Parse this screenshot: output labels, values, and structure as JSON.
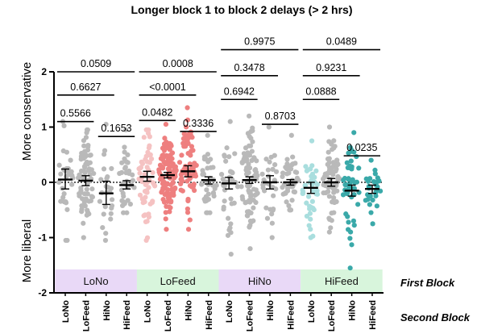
{
  "chart_data": {
    "type": "scatter",
    "title": "Longer block 1 to block 2 delays (> 2 hrs)",
    "ylabel_top": "More conservative",
    "ylabel_bottom": "More liberal",
    "ylim": [
      -2,
      2
    ],
    "yticks": [
      "-2",
      "-1",
      "0",
      "1",
      "2"
    ],
    "reference_line": 0,
    "first_block_label": "First Block",
    "second_block_label": "Second Block",
    "first_blocks": [
      {
        "name": "LoNo",
        "color": "#e9d9f7"
      },
      {
        "name": "LoFeed",
        "color": "#d8f5dc"
      },
      {
        "name": "HiNo",
        "color": "#e9d9f7"
      },
      {
        "name": "HiFeed",
        "color": "#d8f5dc"
      }
    ],
    "second_blocks": [
      "LoNo",
      "LoFeed",
      "HiNo",
      "HiFeed"
    ],
    "series": [
      {
        "first": "LoNo",
        "second": "LoNo",
        "color": "#b9b9b9",
        "mean": 0.05,
        "ci": [
          -0.12,
          0.24
        ],
        "n": 30,
        "min": -1.05,
        "max": 1.1
      },
      {
        "first": "LoNo",
        "second": "LoFeed",
        "color": "#b9b9b9",
        "mean": 0.03,
        "ci": [
          -0.06,
          0.12
        ],
        "n": 70,
        "min": -1.0,
        "max": 0.95
      },
      {
        "first": "LoNo",
        "second": "HiNo",
        "color": "#b9b9b9",
        "mean": -0.2,
        "ci": [
          -0.4,
          0.02
        ],
        "n": 25,
        "min": -1.05,
        "max": 1.05
      },
      {
        "first": "LoNo",
        "second": "HiFeed",
        "color": "#b9b9b9",
        "mean": -0.05,
        "ci": [
          -0.12,
          0.03
        ],
        "n": 35,
        "min": -0.55,
        "max": 0.95
      },
      {
        "first": "LoFeed",
        "second": "LoNo",
        "color": "#f5c2c2",
        "mean": 0.1,
        "ci": [
          0.02,
          0.2
        ],
        "n": 55,
        "min": -1.05,
        "max": 0.95
      },
      {
        "first": "LoFeed",
        "second": "LoFeed",
        "color": "#ee7f7f",
        "mean": 0.13,
        "ci": [
          0.08,
          0.18
        ],
        "n": 110,
        "min": -0.85,
        "max": 1.05
      },
      {
        "first": "LoFeed",
        "second": "HiNo",
        "color": "#ee7f7f",
        "mean": 0.2,
        "ci": [
          0.1,
          0.3
        ],
        "n": 75,
        "min": -0.85,
        "max": 1.35
      },
      {
        "first": "LoFeed",
        "second": "HiFeed",
        "color": "#b9b9b9",
        "mean": 0.04,
        "ci": [
          -0.03,
          0.1
        ],
        "n": 35,
        "min": -0.55,
        "max": 0.85
      },
      {
        "first": "HiNo",
        "second": "LoNo",
        "color": "#b9b9b9",
        "mean": -0.02,
        "ci": [
          -0.12,
          0.09
        ],
        "n": 40,
        "min": -1.3,
        "max": 1.1
      },
      {
        "first": "HiNo",
        "second": "LoFeed",
        "color": "#b9b9b9",
        "mean": 0.04,
        "ci": [
          -0.02,
          0.1
        ],
        "n": 80,
        "min": -1.2,
        "max": 1.2
      },
      {
        "first": "HiNo",
        "second": "HiNo",
        "color": "#b9b9b9",
        "mean": 0.0,
        "ci": [
          -0.12,
          0.12
        ],
        "n": 30,
        "min": -1.0,
        "max": 1.0
      },
      {
        "first": "HiNo",
        "second": "HiFeed",
        "color": "#b9b9b9",
        "mean": 0.0,
        "ci": [
          -0.05,
          0.05
        ],
        "n": 45,
        "min": -0.5,
        "max": 0.85
      },
      {
        "first": "HiFeed",
        "second": "LoNo",
        "color": "#a9dede",
        "mean": -0.1,
        "ci": [
          -0.2,
          0.0
        ],
        "n": 40,
        "min": -1.0,
        "max": 0.75
      },
      {
        "first": "HiFeed",
        "second": "LoFeed",
        "color": "#b9b9b9",
        "mean": 0.0,
        "ci": [
          -0.07,
          0.07
        ],
        "n": 75,
        "min": -0.9,
        "max": 1.0
      },
      {
        "first": "HiFeed",
        "second": "HiNo",
        "color": "#3aa9a9",
        "mean": -0.15,
        "ci": [
          -0.25,
          -0.05
        ],
        "n": 50,
        "min": -1.55,
        "max": 0.9
      },
      {
        "first": "HiFeed",
        "second": "HiFeed",
        "color": "#3aa9a9",
        "mean": -0.12,
        "ci": [
          -0.2,
          -0.05
        ],
        "n": 30,
        "min": -0.75,
        "max": 0.4
      }
    ],
    "comparisons": [
      {
        "from": 0,
        "to": 1,
        "y": 1.1,
        "label": "0.5566"
      },
      {
        "from": 0,
        "to": 2,
        "y": 1.58,
        "label": "0.6627"
      },
      {
        "from": 0,
        "to": 3,
        "y": 2.0,
        "label": "0.0509"
      },
      {
        "from": 2,
        "to": 3,
        "y": 0.83,
        "label": "0.1653"
      },
      {
        "from": 4,
        "to": 5,
        "y": 1.12,
        "label": "0.0482"
      },
      {
        "from": 4,
        "to": 6,
        "y": 1.58,
        "label": "<0.0001"
      },
      {
        "from": 4,
        "to": 7,
        "y": 2.0,
        "label": "0.0008"
      },
      {
        "from": 6,
        "to": 7,
        "y": 0.92,
        "label": "0.3336"
      },
      {
        "from": 8,
        "to": 9,
        "y": 1.5,
        "label": "0.6942"
      },
      {
        "from": 8,
        "to": 10,
        "y": 1.93,
        "label": "0.3478"
      },
      {
        "from": 8,
        "to": 11,
        "y": 2.4,
        "label": "0.9975"
      },
      {
        "from": 10,
        "to": 11,
        "y": 1.05,
        "label": "0.8703"
      },
      {
        "from": 12,
        "to": 13,
        "y": 1.5,
        "label": "0.0888"
      },
      {
        "from": 12,
        "to": 14,
        "y": 1.93,
        "label": "0.9231"
      },
      {
        "from": 12,
        "to": 15,
        "y": 2.4,
        "label": "0.0489"
      },
      {
        "from": 14,
        "to": 15,
        "y": 0.48,
        "label": "0.0235"
      }
    ]
  }
}
